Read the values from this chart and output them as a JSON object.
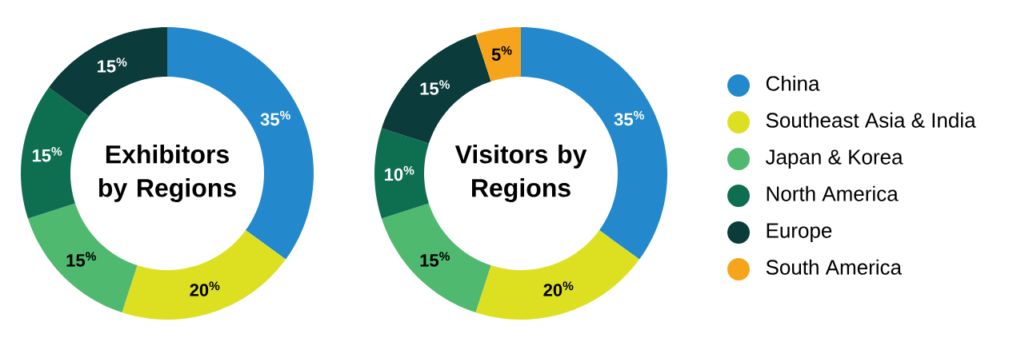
{
  "chart_data": [
    {
      "type": "donut",
      "title": "Exhibitors by Regions",
      "categories": [
        null,
        null,
        null,
        null,
        null
      ],
      "values": [
        35,
        20,
        15,
        15,
        15
      ],
      "value_labels": [
        "35$^{%}$",
        "20$^{%}$",
        "15$^{%}$",
        "15$^{%}$",
        "15$^{%}$"
      ],
      "colors": [
        "#2389cc",
        "#dde021",
        "#50b970",
        "#0e6e50",
        "#0b3b3b"
      ]
    },
    {
      "type": "donut",
      "title": "Visitors by Regions",
      "categories": [
        "China",
        "Southeast Asia & India",
        "Japan & Korea",
        "North America",
        "Europe",
        "South America"
      ],
      "values": [
        35,
        20,
        15,
        10,
        15,
        5
      ],
      "value_labels": [
        "35$^{%}$",
        "20$^{%}$",
        "15$^{%}$",
        "10$^{%}$",
        "15$^{%}$",
        "5$^{%}$"
      ],
      "colors": [
        "#2389cc",
        "#dde021",
        "#50b970",
        "#0e6e50",
        "#0b3b3b",
        "#f7a41d"
      ],
      "legend": "right"
    }
  ]
}
